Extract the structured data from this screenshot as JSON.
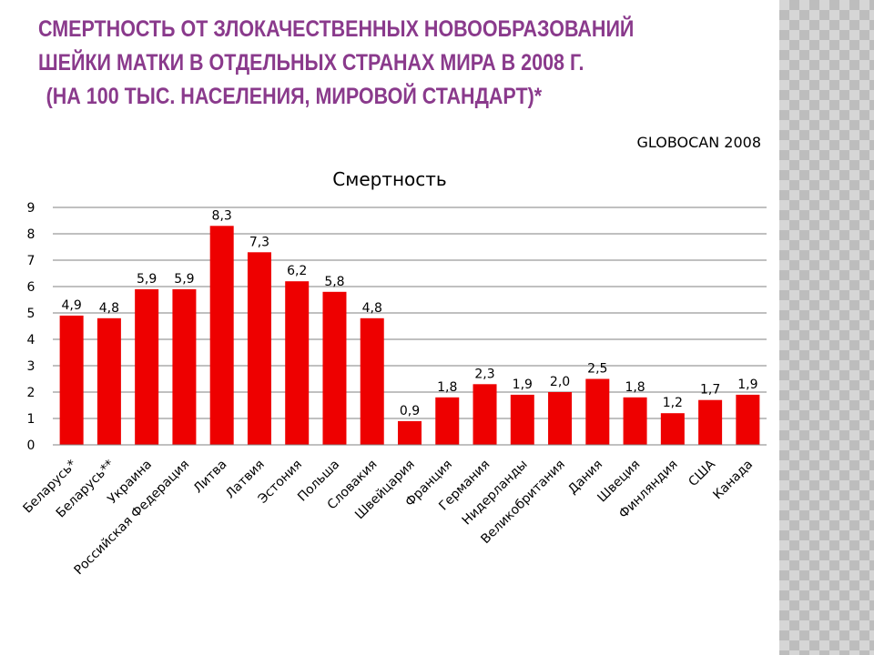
{
  "header": {
    "title_lines": [
      "СМЕРТНОСТЬ ОТ ЗЛОКАЧЕСТВЕННЫХ НОВООБРАЗОВАНИЙ",
      "ШЕЙКИ МАТКИ В ОТДЕЛЬНЫХ СТРАНАХ МИРА В 2008 Г.",
      "(НА 100 ТЫС. НАСЕЛЕНИЯ, МИРОВОЙ СТАНДАРТ)*"
    ],
    "source": "GLOBOCAN 2008"
  },
  "colors": {
    "title": "#8a3a8c",
    "bar": "#ee0000",
    "grid": "#808080"
  },
  "chart_data": {
    "type": "bar",
    "title": "Смертность",
    "xlabel": "",
    "ylabel": "",
    "ylim": [
      0,
      9
    ],
    "yticks": [
      0,
      1,
      2,
      3,
      4,
      5,
      6,
      7,
      8,
      9
    ],
    "grid": true,
    "categories": [
      "Беларусь*",
      "Беларусь**",
      "Украина",
      "Российская Федерация",
      "Литва",
      "Латвия",
      "Эстония",
      "Польша",
      "Словакия",
      "Швейцария",
      "Франция",
      "Германия",
      "Нидерланды",
      "Великобритания",
      "Дания",
      "Швеция",
      "Финляндия",
      "США",
      "Канада"
    ],
    "values": [
      4.9,
      4.8,
      5.9,
      5.9,
      8.3,
      7.3,
      6.2,
      5.8,
      4.8,
      0.9,
      1.8,
      2.3,
      1.9,
      2.0,
      2.5,
      1.8,
      1.2,
      1.7,
      1.9
    ],
    "data_labels": [
      "4,9",
      "4,8",
      "5,9",
      "5,9",
      "8,3",
      "7,3",
      "6,2",
      "5,8",
      "4,8",
      "0,9",
      "1,8",
      "2,3",
      "1,9",
      "2,0",
      "2,5",
      "1,8",
      "1,2",
      "1,7",
      "1,9"
    ]
  }
}
